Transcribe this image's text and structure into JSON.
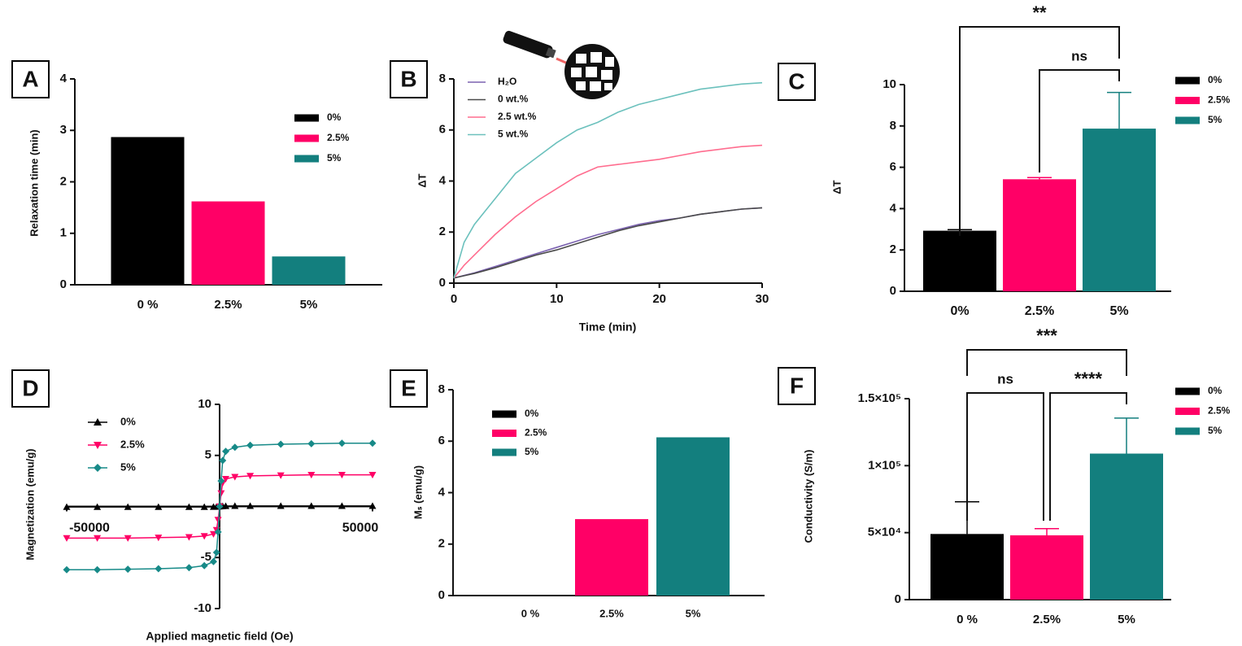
{
  "chart_data": [
    {
      "type": "bar",
      "label": "A",
      "ylabel": "Relaxation time (min)",
      "categories": [
        "0 %",
        "2.5%",
        "5%"
      ],
      "values": [
        2.87,
        1.62,
        0.55
      ],
      "colors": [
        "#000000",
        "#ff0066",
        "#137f7e"
      ],
      "legend": [
        "0%",
        "2.5%",
        "5%"
      ],
      "ylim": [
        0,
        4
      ],
      "yticks": [
        0,
        1,
        2,
        3,
        4
      ]
    },
    {
      "type": "line",
      "label": "B",
      "xlabel": "Time (min)",
      "ylabel": "ΔT",
      "x": [
        0,
        1,
        2,
        4,
        6,
        8,
        10,
        12,
        14,
        16,
        18,
        20,
        22,
        24,
        26,
        28,
        30
      ],
      "series": [
        {
          "name": "H₂O",
          "color": "#7b62b0",
          "values": [
            0.2,
            0.3,
            0.4,
            0.65,
            0.9,
            1.15,
            1.4,
            1.65,
            1.9,
            2.1,
            2.3,
            2.45,
            2.55,
            2.7,
            2.8,
            2.9,
            2.95
          ]
        },
        {
          "name": "0 wt.%",
          "color": "#4a4a4a",
          "values": [
            0.2,
            0.29,
            0.38,
            0.6,
            0.85,
            1.1,
            1.3,
            1.55,
            1.8,
            2.05,
            2.25,
            2.4,
            2.55,
            2.7,
            2.8,
            2.9,
            2.95
          ]
        },
        {
          "name": "2.5 wt.%",
          "color": "#ff6d8f",
          "values": [
            0.2,
            0.7,
            1.1,
            1.9,
            2.6,
            3.2,
            3.7,
            4.2,
            4.55,
            4.65,
            4.75,
            4.85,
            5.0,
            5.15,
            5.25,
            5.35,
            5.4
          ]
        },
        {
          "name": "5 wt.%",
          "color": "#6cc1bd",
          "values": [
            0.2,
            1.6,
            2.3,
            3.3,
            4.3,
            4.9,
            5.5,
            6.0,
            6.3,
            6.7,
            7.0,
            7.2,
            7.4,
            7.6,
            7.7,
            7.8,
            7.85
          ]
        }
      ],
      "xlim": [
        0,
        30
      ],
      "xticks": [
        0,
        10,
        20,
        30
      ],
      "ylim": [
        0,
        8
      ],
      "yticks": [
        0,
        2,
        4,
        6,
        8
      ]
    },
    {
      "type": "bar",
      "label": "C",
      "ylabel": "ΔT",
      "categories": [
        "0%",
        "2.5%",
        "5%"
      ],
      "values": [
        2.93,
        5.42,
        7.87
      ],
      "errors": [
        0.05,
        0.08,
        1.75
      ],
      "colors": [
        "#000000",
        "#ff0066",
        "#137f7e"
      ],
      "legend": [
        "0%",
        "2.5%",
        "5%"
      ],
      "ylim": [
        0,
        10
      ],
      "yticks": [
        0,
        2,
        4,
        6,
        8,
        10
      ],
      "significance": [
        {
          "text": "**",
          "between": [
            0,
            2
          ]
        },
        {
          "text": "ns",
          "between": [
            1,
            2
          ]
        }
      ]
    },
    {
      "type": "line",
      "label": "D",
      "xlabel": "Applied magnetic field (Oe)",
      "ylabel": "Magnetization (emu/g)",
      "x": [
        -50000,
        -40000,
        -30000,
        -20000,
        -10000,
        -5000,
        -2000,
        -1000,
        -500,
        0,
        500,
        1000,
        2000,
        5000,
        10000,
        20000,
        30000,
        40000,
        50000
      ],
      "series": [
        {
          "name": "0%",
          "color": "#000000",
          "marker": "triangle-up",
          "values": [
            -0.05,
            -0.05,
            -0.05,
            -0.05,
            -0.05,
            -0.05,
            -0.04,
            -0.03,
            -0.02,
            0,
            0.02,
            0.03,
            0.04,
            0.05,
            0.05,
            0.05,
            0.05,
            0.05,
            0.05
          ]
        },
        {
          "name": "2.5%",
          "color": "#ff0066",
          "marker": "triangle-down",
          "values": [
            -3.1,
            -3.1,
            -3.1,
            -3.05,
            -3.0,
            -2.9,
            -2.7,
            -2.3,
            -1.3,
            0,
            1.3,
            2.3,
            2.7,
            2.9,
            3.0,
            3.05,
            3.1,
            3.1,
            3.1
          ]
        },
        {
          "name": "5%",
          "color": "#178a88",
          "marker": "diamond",
          "values": [
            -6.2,
            -6.2,
            -6.15,
            -6.1,
            -6.0,
            -5.8,
            -5.4,
            -4.5,
            -2.5,
            0,
            2.5,
            4.5,
            5.4,
            5.8,
            6.0,
            6.1,
            6.15,
            6.2,
            6.2
          ]
        }
      ],
      "xlim": [
        -50000,
        50000
      ],
      "xticks": [
        -50000,
        50000
      ],
      "ylim": [
        -10,
        10
      ],
      "yticks": [
        -10,
        -5,
        5,
        10
      ]
    },
    {
      "type": "bar",
      "label": "E",
      "ylabel": "Mₛ (emu/g)",
      "categories": [
        "0 %",
        "2.5%",
        "5%"
      ],
      "values": [
        0,
        2.97,
        6.15
      ],
      "colors": [
        "#000000",
        "#ff0066",
        "#137f7e"
      ],
      "legend": [
        "0%",
        "2.5%",
        "5%"
      ],
      "ylim": [
        0,
        8
      ],
      "yticks": [
        0,
        2,
        4,
        6,
        8
      ]
    },
    {
      "type": "bar",
      "label": "F",
      "ylabel": "Conductivity (S/m)",
      "categories": [
        "0 %",
        "2.5%",
        "5%"
      ],
      "values": [
        49000,
        48000,
        109000
      ],
      "errors": [
        24000,
        5000,
        26500
      ],
      "colors": [
        "#000000",
        "#ff0066",
        "#137f7e"
      ],
      "legend": [
        "0%",
        "2.5%",
        "5%"
      ],
      "ylim": [
        0,
        150000
      ],
      "yticks": [
        0,
        {
          "value": 50000,
          "label": "5×10⁴"
        },
        {
          "value": 100000,
          "label": "1×10⁵"
        },
        {
          "value": 150000,
          "label": "1.5×10⁵"
        }
      ],
      "significance": [
        {
          "text": "***",
          "between": [
            0,
            2
          ]
        },
        {
          "text": "ns",
          "between": [
            0,
            1
          ]
        },
        {
          "text": "****",
          "between": [
            1,
            2
          ]
        }
      ]
    }
  ]
}
